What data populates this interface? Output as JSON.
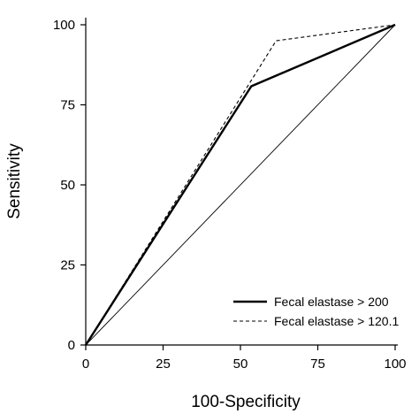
{
  "chart_data": {
    "type": "line",
    "title": "",
    "xlabel": "100-Specificity",
    "ylabel": "Sensitivity",
    "xlim": [
      0,
      100
    ],
    "ylim": [
      0,
      100
    ],
    "xticks": [
      0,
      25,
      50,
      75,
      100
    ],
    "yticks": [
      0,
      25,
      50,
      75,
      100
    ],
    "grid": false,
    "legend_position": "bottom-right",
    "series": [
      {
        "name": "Fecal elastase > 200",
        "style": "solid-thick",
        "color": "#000000",
        "x": [
          0,
          53.5,
          100
        ],
        "y": [
          0,
          80.8,
          100
        ]
      },
      {
        "name": "Fecal elastase > 120.1",
        "style": "dashed",
        "color": "#000000",
        "x": [
          0,
          61.5,
          100
        ],
        "y": [
          0,
          95.0,
          100
        ]
      },
      {
        "name": "",
        "style": "solid-thin",
        "color": "#000000",
        "x": [
          0,
          100
        ],
        "y": [
          0,
          100
        ]
      }
    ]
  }
}
